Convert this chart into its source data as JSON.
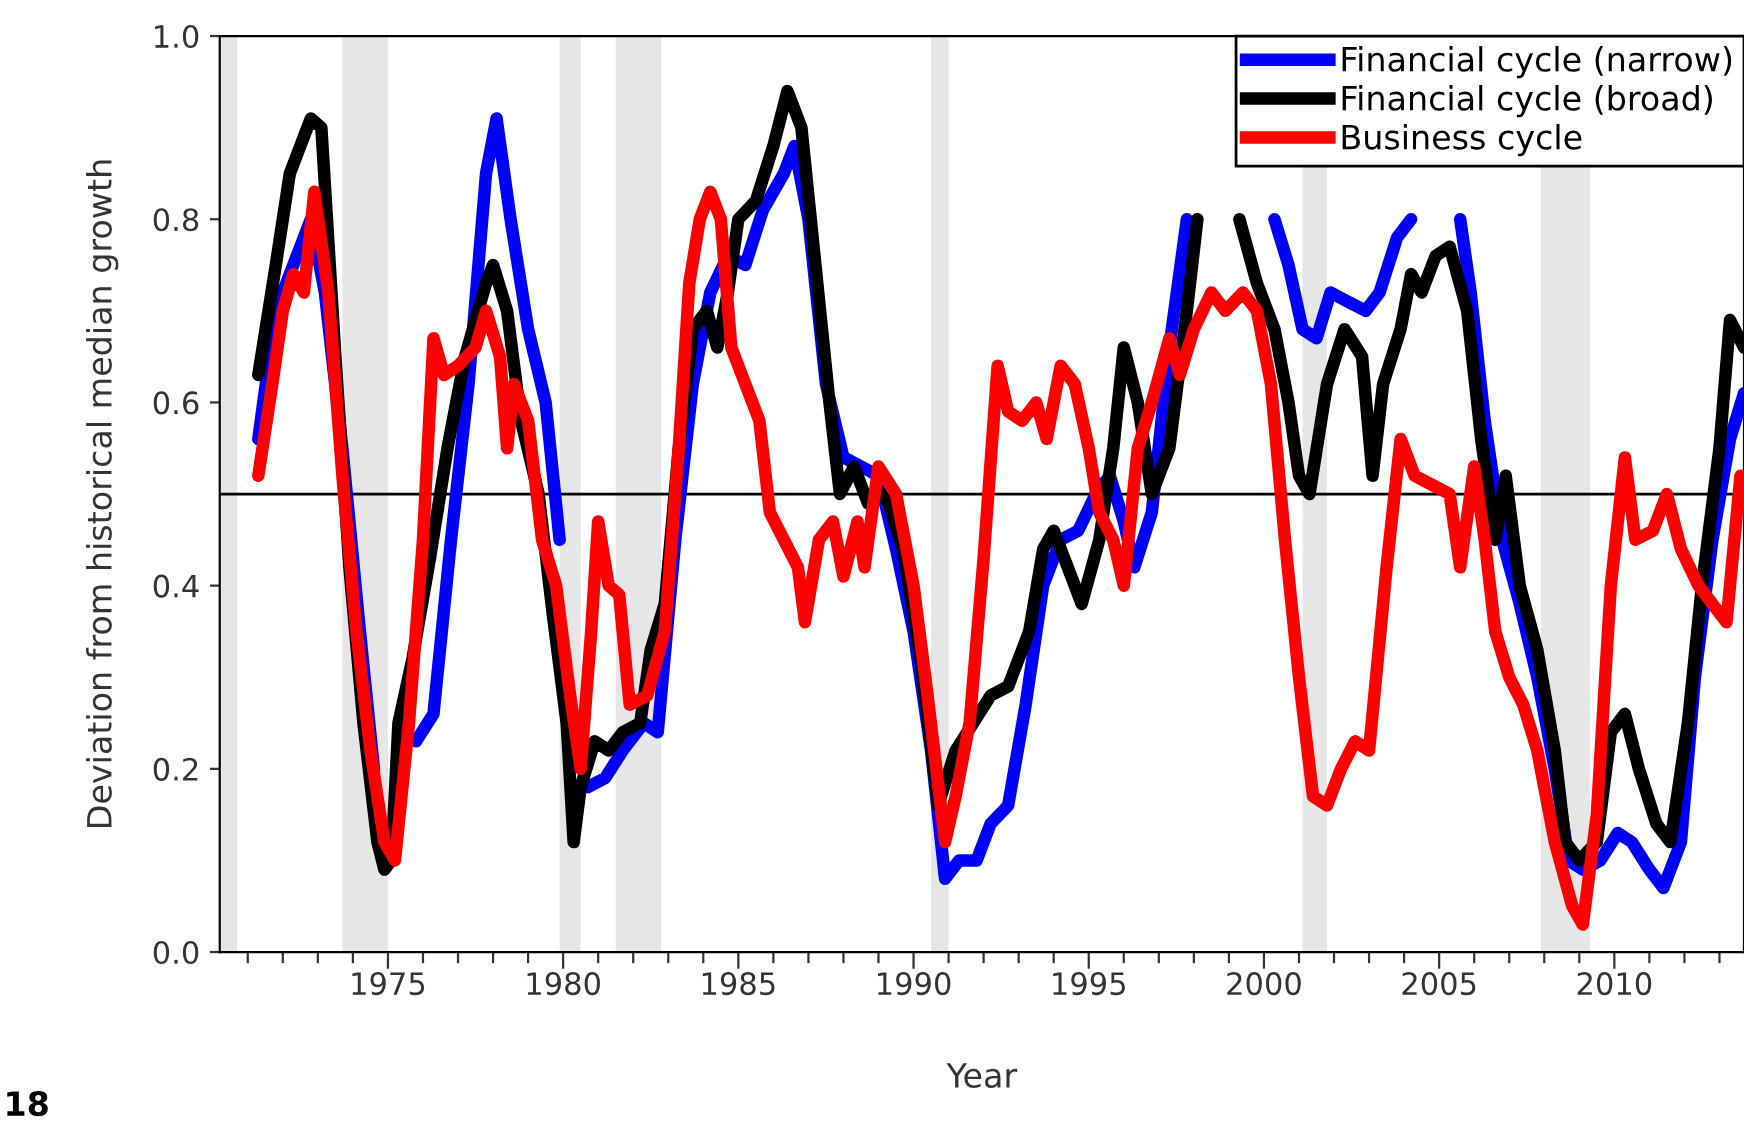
{
  "chart_data": {
    "type": "line",
    "xlabel": "Year",
    "ylabel": "Deviation from historical median growth",
    "annotations": [
      "18"
    ],
    "xlim": [
      1970.2,
      2013.7
    ],
    "ylim": [
      0,
      1.0
    ],
    "yticks": [
      {
        "value": 0,
        "label": "0.0"
      },
      0.2,
      0.4,
      0.6,
      0.8,
      {
        "value": 1.0,
        "label": "1.0"
      }
    ],
    "xticks": [
      {
        "value": 1971,
        "label": null
      },
      {
        "value": 1972,
        "label": null
      },
      {
        "value": 1973,
        "label": null
      },
      {
        "value": 1974,
        "label": null
      },
      1975,
      {
        "value": 1976,
        "label": null
      },
      {
        "value": 1977,
        "label": null
      },
      {
        "value": 1978,
        "label": null
      },
      {
        "value": 1979,
        "label": null
      },
      1980,
      {
        "value": 1981,
        "label": null
      },
      {
        "value": 1982,
        "label": null
      },
      {
        "value": 1983,
        "label": null
      },
      {
        "value": 1984,
        "label": null
      },
      1985,
      {
        "value": 1986,
        "label": null
      },
      {
        "value": 1987,
        "label": null
      },
      {
        "value": 1988,
        "label": null
      },
      {
        "value": 1989,
        "label": null
      },
      1990,
      {
        "value": 1991,
        "label": null
      },
      {
        "value": 1992,
        "label": null
      },
      {
        "value": 1993,
        "label": null
      },
      {
        "value": 1994,
        "label": null
      },
      1995,
      {
        "value": 1996,
        "label": null
      },
      {
        "value": 1997,
        "label": null
      },
      {
        "value": 1998,
        "label": null
      },
      {
        "value": 1999,
        "label": null
      },
      2000,
      {
        "value": 2001,
        "label": null
      },
      {
        "value": 2002,
        "label": null
      },
      {
        "value": 2003,
        "label": null
      },
      {
        "value": 2004,
        "label": null
      },
      2005,
      {
        "value": 2006,
        "label": null
      },
      {
        "value": 2007,
        "label": null
      },
      {
        "value": 2008,
        "label": null
      },
      {
        "value": 2009,
        "label": null
      },
      2010,
      {
        "value": 2011,
        "label": null
      },
      {
        "value": 2012,
        "label": null
      },
      {
        "value": 2013,
        "label": null
      }
    ],
    "grid": false,
    "legend": "top right",
    "marker": "none",
    "line_style": "solid",
    "ref_lines": [
      {
        "axis": "y",
        "value": 0.5,
        "color": "#000000"
      }
    ],
    "bands": [
      {
        "axis": "x",
        "from": 1970.2,
        "to": 1970.7,
        "color": "#e6e6e6"
      },
      {
        "axis": "x",
        "from": 1973.7,
        "to": 1975.0,
        "color": "#e6e6e6"
      },
      {
        "axis": "x",
        "from": 1979.9,
        "to": 1980.5,
        "color": "#e6e6e6"
      },
      {
        "axis": "x",
        "from": 1981.5,
        "to": 1982.8,
        "color": "#e6e6e6"
      },
      {
        "axis": "x",
        "from": 1990.5,
        "to": 1991.0,
        "color": "#e6e6e6"
      },
      {
        "axis": "x",
        "from": 2001.1,
        "to": 2001.8,
        "color": "#e6e6e6"
      },
      {
        "axis": "x",
        "from": 2007.9,
        "to": 2009.3,
        "color": "#e6e6e6"
      }
    ],
    "series": [
      {
        "name": "Financial cycle (narrow)",
        "color": "#0000ff",
        "x": [
          1971.3,
          1971.8,
          1972.3,
          1972.8,
          1973.2,
          1973.7,
          1974.2,
          1974.6,
          1975.0,
          1975.3,
          1975.8,
          1976.3,
          1976.8,
          1977.3,
          1977.8,
          1978.1,
          1978.5,
          1979.0,
          1979.5,
          1979.9,
          1980.3,
          1980.7,
          1981.2,
          1981.7,
          1982.3,
          1982.7,
          1983.2,
          1983.7,
          1984.2,
          1984.7,
          1985.2,
          1985.7,
          1986.3,
          1986.6,
          1987.0,
          1987.5,
          1988.0,
          1988.5,
          1989.0,
          1989.5,
          1990.0,
          1990.5,
          1990.9,
          1991.3,
          1991.8,
          1992.2,
          1992.7,
          1993.2,
          1993.7,
          1994.2,
          1994.7,
          1995.2,
          1995.6,
          1996.0,
          1996.3,
          1996.8,
          1997.3,
          1997.8,
          1998.5,
          1999.3,
          2000.3,
          2000.7,
          2001.1,
          2001.5,
          2001.9,
          2002.4,
          2002.9,
          2003.3,
          2003.8,
          2004.2,
          2004.8,
          2005.6,
          2005.9,
          2006.3,
          2006.8,
          2007.3,
          2007.8,
          2008.3,
          2008.7,
          2009.1,
          2009.6,
          2010.1,
          2010.5,
          2011.0,
          2011.4,
          2011.9,
          2012.3,
          2012.8,
          2013.3,
          2013.7
        ],
        "values": [
          0.56,
          0.7,
          0.75,
          0.8,
          0.72,
          0.55,
          0.35,
          0.2,
          null,
          null,
          0.23,
          0.26,
          0.45,
          0.62,
          0.85,
          0.91,
          0.8,
          0.68,
          0.6,
          0.45,
          null,
          0.18,
          0.19,
          0.22,
          0.25,
          0.24,
          0.45,
          0.62,
          0.72,
          0.76,
          0.75,
          0.81,
          0.85,
          0.88,
          0.8,
          0.62,
          0.54,
          0.53,
          0.52,
          0.44,
          0.35,
          0.22,
          0.08,
          0.1,
          0.1,
          0.14,
          0.16,
          0.27,
          0.4,
          0.45,
          0.46,
          0.5,
          0.52,
          0.47,
          0.42,
          0.48,
          0.66,
          0.8,
          null,
          null,
          0.8,
          0.75,
          0.68,
          0.67,
          0.72,
          0.71,
          0.7,
          0.72,
          0.78,
          0.8,
          null,
          0.8,
          0.72,
          0.58,
          0.45,
          0.38,
          0.3,
          0.2,
          0.1,
          0.09,
          0.1,
          0.13,
          0.12,
          0.09,
          0.07,
          0.12,
          0.3,
          0.45,
          0.56,
          0.61
        ]
      },
      {
        "name": "Financial cycle (broad)",
        "color": "#000000",
        "x": [
          1971.3,
          1971.8,
          1972.2,
          1972.5,
          1972.8,
          1973.1,
          1973.5,
          1973.9,
          1974.3,
          1974.7,
          1974.9,
          1975.1,
          1975.3,
          1975.7,
          1976.2,
          1976.7,
          1977.2,
          1977.8,
          1978.0,
          1978.4,
          1978.8,
          1979.3,
          1979.7,
          1980.1,
          1980.3,
          1980.5,
          1980.9,
          1981.3,
          1981.7,
          1982.2,
          1982.5,
          1982.9,
          1983.3,
          1983.7,
          1984.1,
          1984.4,
          1984.7,
          1985.0,
          1985.5,
          1986.0,
          1986.4,
          1986.8,
          1987.2,
          1987.6,
          1987.9,
          1988.3,
          1988.7,
          1989.2,
          1989.7,
          1990.2,
          1990.7,
          1991.2,
          1991.7,
          1992.2,
          1992.7,
          1993.3,
          1993.7,
          1994.0,
          1994.4,
          1994.8,
          1995.3,
          1995.7,
          1996.0,
          1996.4,
          1996.8,
          1997.3,
          1997.8,
          1998.1,
          1998.6,
          1999.3,
          1999.8,
          2000.3,
          2000.7,
          2001.0,
          2001.3,
          2001.8,
          2002.3,
          2002.8,
          2003.1,
          2003.4,
          2003.9,
          2004.2,
          2004.5,
          2004.9,
          2005.3,
          2005.8,
          2006.2,
          2006.6,
          2006.9,
          2007.3,
          2007.8,
          2008.3,
          2008.6,
          2009.0,
          2009.5,
          2009.9,
          2010.3,
          2010.7,
          2011.2,
          2011.6,
          2012.1,
          2012.5,
          2013.0,
          2013.3,
          2013.7
        ],
        "values": [
          0.63,
          0.75,
          0.85,
          0.88,
          0.91,
          0.9,
          0.65,
          0.42,
          0.25,
          0.12,
          0.09,
          0.1,
          0.25,
          0.32,
          0.43,
          0.55,
          0.65,
          0.73,
          0.75,
          0.7,
          0.58,
          0.5,
          0.37,
          0.25,
          0.12,
          0.18,
          0.23,
          0.22,
          0.24,
          0.25,
          0.33,
          0.38,
          0.55,
          0.68,
          0.7,
          0.66,
          0.72,
          0.8,
          0.82,
          0.88,
          0.94,
          0.9,
          0.75,
          0.6,
          0.5,
          0.53,
          0.49,
          0.5,
          0.44,
          0.32,
          0.16,
          0.22,
          0.25,
          0.28,
          0.29,
          0.35,
          0.44,
          0.46,
          0.42,
          0.38,
          0.45,
          0.55,
          0.66,
          0.6,
          0.5,
          0.55,
          0.7,
          0.8,
          null,
          0.8,
          0.73,
          0.68,
          0.6,
          0.52,
          0.5,
          0.62,
          0.68,
          0.65,
          0.52,
          0.62,
          0.68,
          0.74,
          0.72,
          0.76,
          0.77,
          0.7,
          0.56,
          0.45,
          0.52,
          0.4,
          0.33,
          0.22,
          0.12,
          0.1,
          0.12,
          0.24,
          0.26,
          0.2,
          0.14,
          0.12,
          0.25,
          0.4,
          0.55,
          0.69,
          0.66
        ]
      },
      {
        "name": "Business cycle",
        "color": "#ff0000",
        "x": [
          1971.3,
          1971.7,
          1972.0,
          1972.3,
          1972.6,
          1972.9,
          1973.3,
          1973.7,
          1974.1,
          1974.5,
          1974.9,
          1975.2,
          1975.6,
          1976.0,
          1976.3,
          1976.6,
          1977.0,
          1977.5,
          1977.8,
          1978.2,
          1978.4,
          1978.6,
          1979.0,
          1979.4,
          1979.8,
          1980.2,
          1980.5,
          1980.8,
          1981.0,
          1981.3,
          1981.6,
          1981.9,
          1982.4,
          1982.9,
          1983.3,
          1983.6,
          1983.9,
          1984.2,
          1984.5,
          1984.8,
          1985.2,
          1985.6,
          1985.9,
          1986.3,
          1986.7,
          1986.9,
          1987.3,
          1987.7,
          1988.0,
          1988.4,
          1988.6,
          1989.0,
          1989.5,
          1990.0,
          1990.4,
          1990.9,
          1991.2,
          1991.6,
          1992.0,
          1992.4,
          1992.7,
          1993.1,
          1993.5,
          1993.8,
          1994.2,
          1994.6,
          1995.0,
          1995.3,
          1995.7,
          1996.0,
          1996.4,
          1996.8,
          1997.3,
          1997.6,
          1998.0,
          1998.5,
          1998.9,
          1999.4,
          1999.8,
          2000.2,
          2000.6,
          2001.0,
          2001.4,
          2001.8,
          2002.2,
          2002.6,
          2003.0,
          2003.5,
          2003.9,
          2004.3,
          2004.8,
          2005.3,
          2005.6,
          2006.0,
          2006.3,
          2006.6,
          2007.0,
          2007.4,
          2007.8,
          2008.3,
          2008.8,
          2009.1,
          2009.5,
          2009.9,
          2010.3,
          2010.6,
          2011.1,
          2011.5,
          2011.9,
          2012.4,
          2012.8,
          2013.2,
          2013.6
        ],
        "values": [
          0.52,
          0.62,
          0.7,
          0.74,
          0.72,
          0.83,
          0.72,
          0.52,
          0.35,
          0.22,
          0.12,
          0.1,
          0.25,
          0.45,
          0.67,
          0.63,
          0.64,
          0.66,
          0.7,
          0.65,
          0.55,
          0.62,
          0.58,
          0.45,
          0.4,
          0.28,
          0.2,
          0.35,
          0.47,
          0.4,
          0.39,
          0.27,
          0.28,
          0.35,
          0.55,
          0.73,
          0.8,
          0.83,
          0.8,
          0.66,
          0.62,
          0.58,
          0.48,
          0.45,
          0.42,
          0.36,
          0.45,
          0.47,
          0.41,
          0.47,
          0.42,
          0.53,
          0.5,
          0.4,
          0.28,
          0.12,
          0.17,
          0.25,
          0.43,
          0.64,
          0.59,
          0.58,
          0.6,
          0.56,
          0.64,
          0.62,
          0.55,
          0.48,
          0.45,
          0.4,
          0.55,
          0.6,
          0.67,
          0.63,
          0.68,
          0.72,
          0.7,
          0.72,
          0.7,
          0.62,
          0.45,
          0.3,
          0.17,
          0.16,
          0.2,
          0.23,
          0.22,
          0.42,
          0.56,
          0.52,
          0.51,
          0.5,
          0.42,
          0.53,
          0.45,
          0.35,
          0.3,
          0.27,
          0.22,
          0.12,
          0.05,
          0.03,
          0.15,
          0.4,
          0.54,
          0.45,
          0.46,
          0.5,
          0.44,
          0.4,
          0.38,
          0.36,
          0.52
        ]
      }
    ]
  }
}
